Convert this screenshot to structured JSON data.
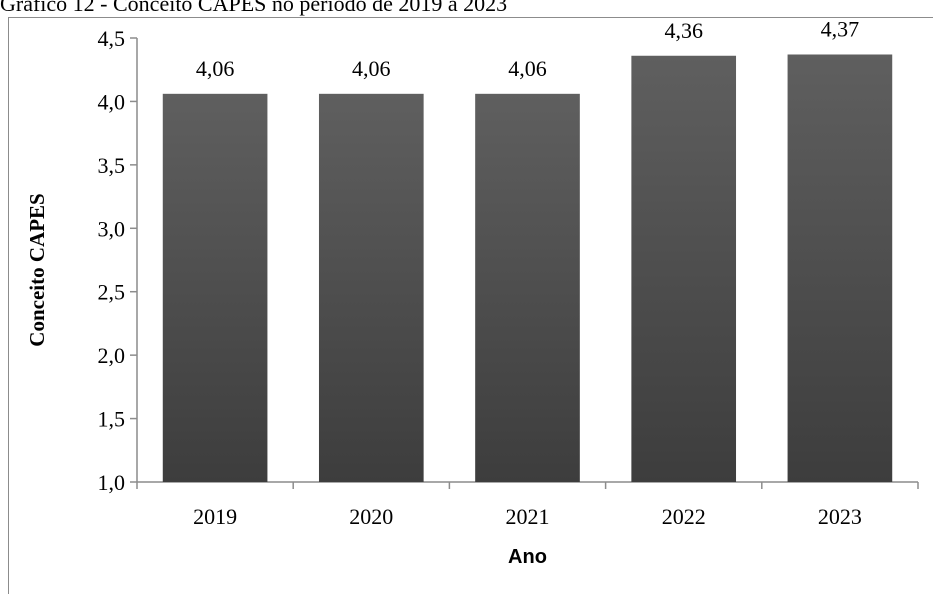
{
  "caption": "Gráfico 12 - Conceito CAPES no período de 2019 a 2023",
  "colors": {
    "bar_top": "#5f5f5f",
    "bar_bottom": "#3d3d3d",
    "axis": "#8c8c8c"
  },
  "chart_data": {
    "type": "bar",
    "categories": [
      "2019",
      "2020",
      "2021",
      "2022",
      "2023"
    ],
    "values": [
      4.06,
      4.06,
      4.06,
      4.36,
      4.37
    ],
    "value_labels": [
      "4,06",
      "4,06",
      "4,06",
      "4,36",
      "4,37"
    ],
    "xlabel": "Ano",
    "ylabel": "Conceito CAPES",
    "ylim": [
      1.0,
      4.5
    ],
    "yticks": [
      1.0,
      1.5,
      2.0,
      2.5,
      3.0,
      3.5,
      4.0,
      4.5
    ],
    "ytick_labels": [
      "1,0",
      "1,5",
      "2,0",
      "2,5",
      "3,0",
      "3,5",
      "4,0",
      "4,5"
    ],
    "grid": false,
    "legend": "none"
  }
}
